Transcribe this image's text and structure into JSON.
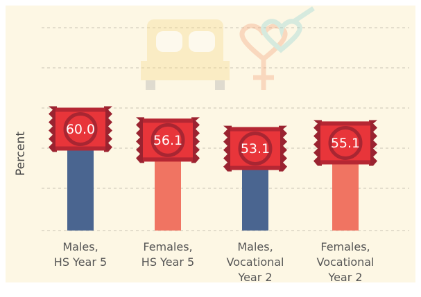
{
  "chart_data": {
    "type": "bar",
    "y_label": "Percent",
    "categories": [
      "Males,\nHS Year 5",
      "Females,\nHS Year 5",
      "Males,\nVocational\nYear 2",
      "Females,\nVocational\nYear 2"
    ],
    "values": [
      60.0,
      56.1,
      53.1,
      55.1
    ],
    "value_labels": [
      "60.0",
      "56.1",
      "53.1",
      "55.1"
    ],
    "colors": [
      "#4a6590",
      "#f07462",
      "#4a6590",
      "#f07462"
    ],
    "ylim": [
      24,
      96
    ]
  }
}
